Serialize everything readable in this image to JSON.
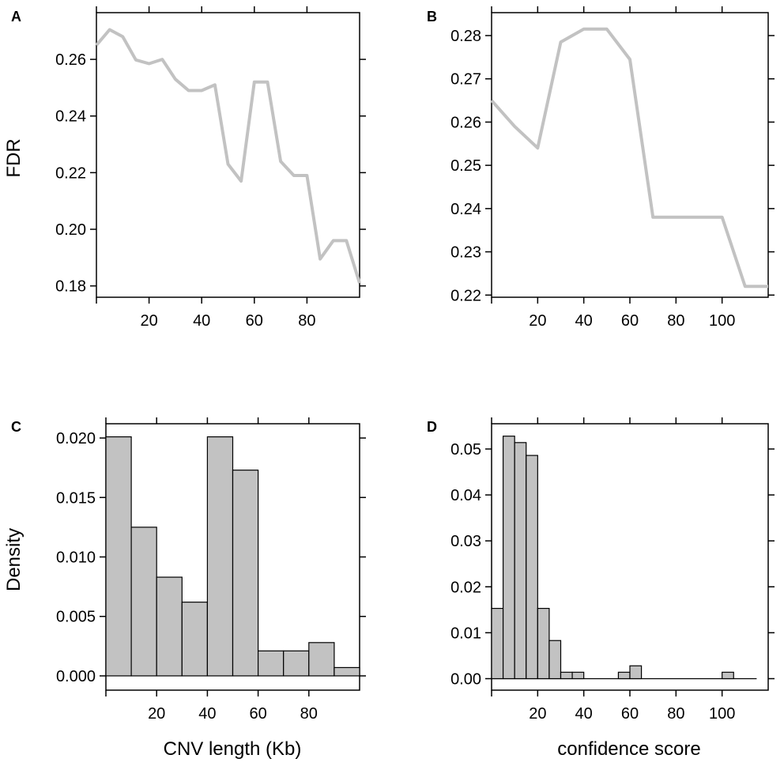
{
  "chart_data": [
    {
      "panel": "A",
      "type": "line",
      "title": "",
      "xlabel": "",
      "ylabel": "FDR",
      "xlim": [
        0,
        100
      ],
      "ylim": [
        0.176,
        0.2765
      ],
      "xticks": [
        20,
        40,
        60,
        80
      ],
      "yticks": [
        0.18,
        0.2,
        0.22,
        0.24,
        0.26
      ],
      "ytick_labels": [
        "0.18",
        "0.20",
        "0.22",
        "0.24",
        "0.26"
      ],
      "series": [
        {
          "name": "FDR",
          "x": [
            0,
            5,
            10,
            15,
            20,
            25,
            30,
            35,
            40,
            45,
            50,
            55,
            60,
            65,
            70,
            75,
            80,
            85,
            90,
            95,
            100
          ],
          "values": [
            0.265,
            0.2705,
            0.268,
            0.2598,
            0.2585,
            0.26,
            0.253,
            0.249,
            0.249,
            0.251,
            0.223,
            0.217,
            0.252,
            0.252,
            0.224,
            0.219,
            0.219,
            0.1895,
            0.196,
            0.196,
            0.181
          ]
        }
      ]
    },
    {
      "panel": "B",
      "type": "line",
      "title": "",
      "xlabel": "",
      "ylabel": "",
      "xlim": [
        0,
        120
      ],
      "ylim": [
        0.2195,
        0.2853
      ],
      "xticks": [
        20,
        40,
        60,
        80,
        100
      ],
      "yticks": [
        0.22,
        0.23,
        0.24,
        0.25,
        0.26,
        0.27,
        0.28
      ],
      "ytick_labels": [
        "0.22",
        "0.23",
        "0.24",
        "0.25",
        "0.26",
        "0.27",
        "0.28"
      ],
      "series": [
        {
          "name": "FDR",
          "x": [
            0,
            10,
            20,
            30,
            40,
            50,
            60,
            70,
            80,
            90,
            100,
            110,
            120
          ],
          "values": [
            0.265,
            0.259,
            0.254,
            0.2785,
            0.2815,
            0.2815,
            0.2745,
            0.238,
            0.238,
            0.238,
            0.238,
            0.222,
            0.222
          ]
        }
      ]
    },
    {
      "panel": "C",
      "type": "bar",
      "title": "",
      "xlabel": "CNV length (Kb)",
      "ylabel": "Density",
      "xlim": [
        0,
        100
      ],
      "ylim": [
        -0.0012,
        0.0212
      ],
      "xticks": [
        20,
        40,
        60,
        80
      ],
      "yticks": [
        0.0,
        0.005,
        0.01,
        0.015,
        0.02
      ],
      "ytick_labels": [
        "0.000",
        "0.005",
        "0.010",
        "0.015",
        "0.020"
      ],
      "bin_width": 10,
      "bin_starts": [
        0,
        10,
        20,
        30,
        40,
        50,
        60,
        70,
        80,
        90
      ],
      "values": [
        0.0201,
        0.0125,
        0.0083,
        0.0062,
        0.0201,
        0.0173,
        0.0021,
        0.0021,
        0.0028,
        0.0007
      ]
    },
    {
      "panel": "D",
      "type": "bar",
      "title": "",
      "xlabel": "confidence score",
      "ylabel": "",
      "xlim": [
        0,
        120
      ],
      "ylim": [
        -0.0025,
        0.0555
      ],
      "xticks": [
        20,
        40,
        60,
        80,
        100
      ],
      "yticks": [
        0.0,
        0.01,
        0.02,
        0.03,
        0.04,
        0.05
      ],
      "ytick_labels": [
        "0.00",
        "0.01",
        "0.02",
        "0.03",
        "0.04",
        "0.05"
      ],
      "bin_width": 5,
      "baseline_end": 115,
      "bin_starts": [
        0,
        5,
        10,
        15,
        20,
        25,
        30,
        35,
        55,
        60,
        100
      ],
      "values": [
        0.0153,
        0.0528,
        0.0514,
        0.0486,
        0.0153,
        0.0083,
        0.0014,
        0.0014,
        0.0014,
        0.0028,
        0.0014
      ]
    }
  ]
}
